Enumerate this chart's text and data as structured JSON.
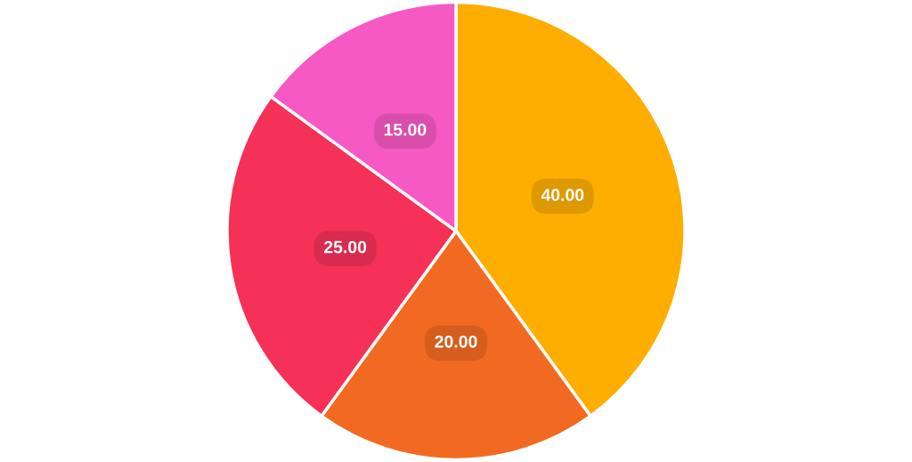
{
  "chart_data": {
    "type": "pie",
    "categories": [
      null,
      null,
      null,
      null
    ],
    "values": [
      40,
      20,
      25,
      15
    ],
    "colors": [
      "#fdae00",
      "#f26a21",
      "#f53157",
      "#f759c4"
    ],
    "value_labels": [
      "40.00",
      "20.00",
      "25.00",
      "15.00"
    ],
    "legend": false
  }
}
